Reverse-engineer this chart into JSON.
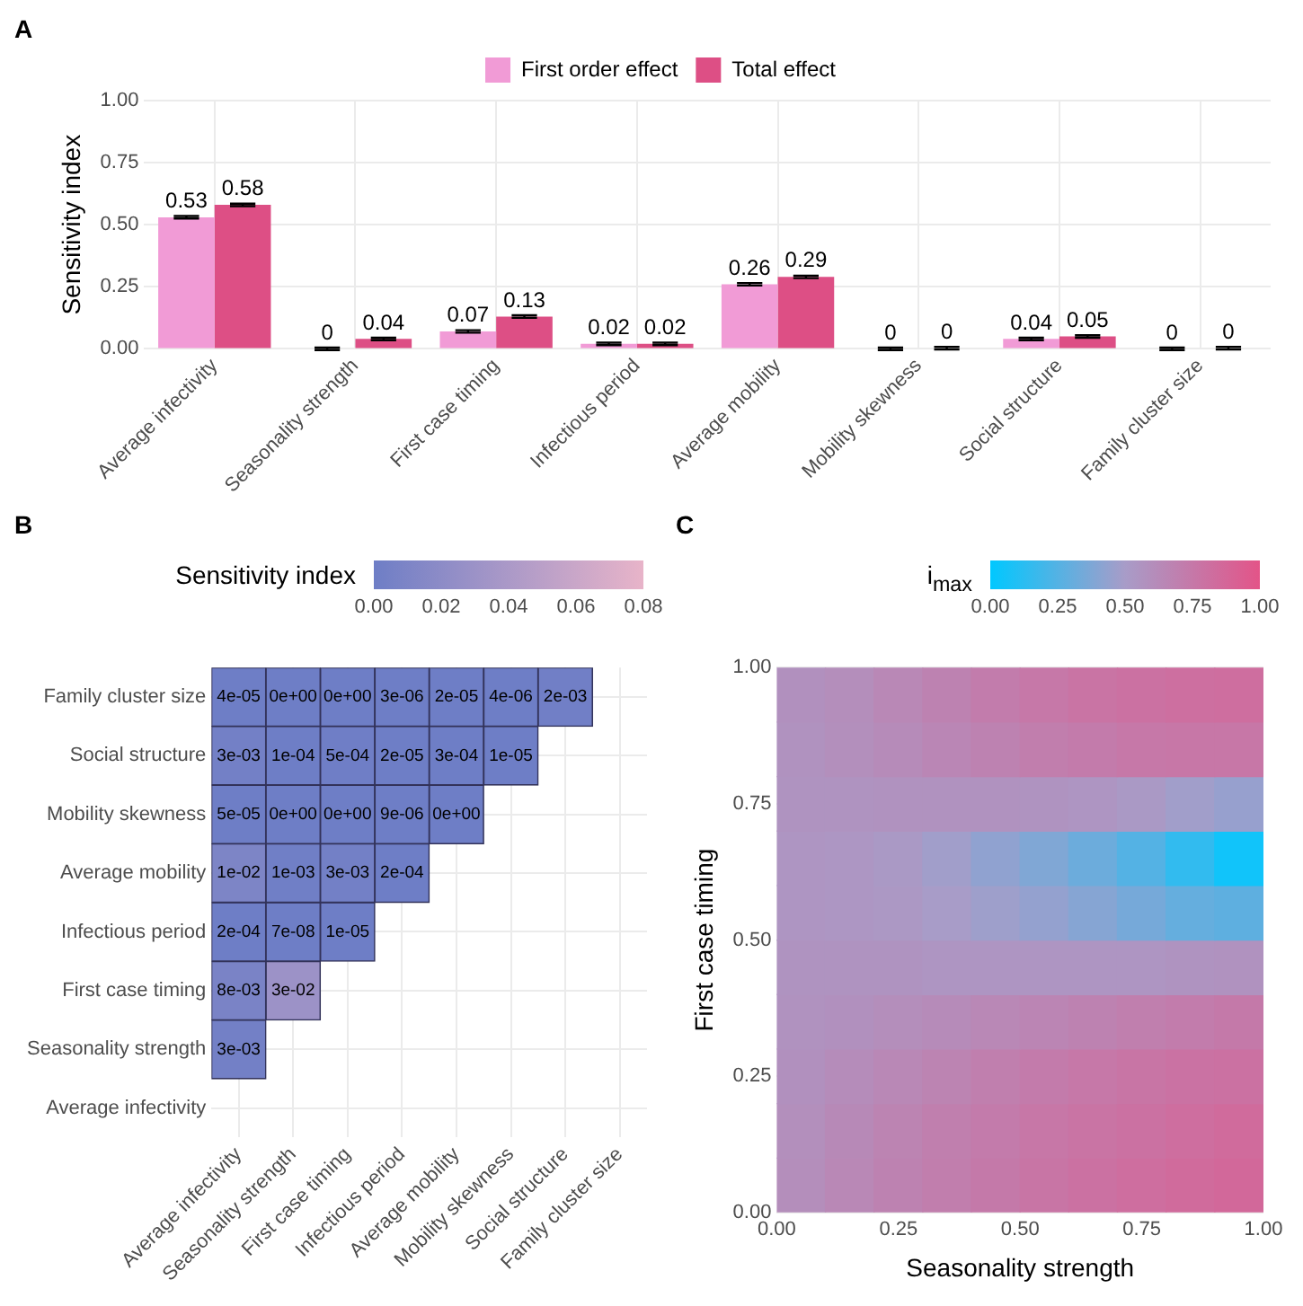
{
  "chart_data": [
    {
      "type": "bar",
      "annotations": [
        "A"
      ],
      "ylabel": "Sensitivity index",
      "categories": [
        "Average infectivity",
        "Seasonality strength",
        "First case timing",
        "Infectious period",
        "Average mobility",
        "Mobility skewness",
        "Social structure",
        "Family cluster size"
      ],
      "series": [
        {
          "name": "First order effect",
          "color": "#f19bd6",
          "values": [
            0.53,
            0,
            0.07,
            0.02,
            0.26,
            0,
            0.04,
            0
          ],
          "errors": [
            0.005,
            0.005,
            0.005,
            0.005,
            0.005,
            0.005,
            0.005,
            0.005
          ],
          "value_labels": [
            "0.53",
            "0",
            "0.07",
            "0.02",
            "0.26",
            "0",
            "0.04",
            "0"
          ]
        },
        {
          "name": "Total effect",
          "color": "#dd4f85",
          "values": [
            0.58,
            0.04,
            0.13,
            0.02,
            0.29,
            0.003,
            0.05,
            0.003
          ],
          "errors": [
            0.005,
            0.005,
            0.005,
            0.005,
            0.005,
            0.005,
            0.005,
            0.005
          ],
          "value_labels": [
            "0.58",
            "0.04",
            "0.13",
            "0.02",
            "0.29",
            "0",
            "0.05",
            "0"
          ]
        }
      ],
      "ylim": [
        0,
        1
      ],
      "yticks": [
        {
          "value": 0,
          "label": "0.00"
        },
        {
          "value": 0.25,
          "label": "0.25"
        },
        {
          "value": 0.5,
          "label": "0.50"
        },
        {
          "value": 0.75,
          "label": "0.75"
        },
        {
          "value": 1,
          "label": "1.00"
        }
      ],
      "grid": true,
      "legend": "top"
    },
    {
      "type": "heatmap",
      "annotations": [
        "B"
      ],
      "clabel": "Sensitivity index",
      "colors": [
        "#6e7ec6",
        "#e8b4c9"
      ],
      "clim": [
        0,
        0.08
      ],
      "cticks": [
        {
          "value": 0,
          "label": "0.00"
        },
        {
          "value": 0.02,
          "label": "0.02"
        },
        {
          "value": 0.04,
          "label": "0.04"
        },
        {
          "value": 0.06,
          "label": "0.06"
        },
        {
          "value": 0.08,
          "label": "0.08"
        }
      ],
      "categories": [
        "Average infectivity",
        "Seasonality strength",
        "First case timing",
        "Infectious period",
        "Average mobility",
        "Mobility skewness",
        "Social structure",
        "Family cluster size"
      ],
      "y_categories": [
        "Family cluster size",
        "Social structure",
        "Mobility skewness",
        "Average mobility",
        "Infectious period",
        "First case timing",
        "Seasonality strength",
        "Average infectivity"
      ],
      "cells": [
        [
          4e-05,
          0,
          0,
          3e-06,
          2e-05,
          4e-06,
          0.002,
          null
        ],
        [
          0.003,
          0.0001,
          0.0005,
          2e-05,
          0.0003,
          1e-05,
          null,
          null
        ],
        [
          5e-05,
          0,
          0,
          9e-06,
          0,
          null,
          null,
          null
        ],
        [
          0.01,
          0.001,
          0.003,
          0.0002,
          null,
          null,
          null,
          null
        ],
        [
          0.0002,
          7e-08,
          1e-05,
          null,
          null,
          null,
          null,
          null
        ],
        [
          0.008,
          0.03,
          null,
          null,
          null,
          null,
          null,
          null
        ],
        [
          0.003,
          null,
          null,
          null,
          null,
          null,
          null,
          null
        ],
        [
          null,
          null,
          null,
          null,
          null,
          null,
          null,
          null
        ]
      ],
      "cell_labels": [
        [
          "4e-05",
          "0e+00",
          "0e+00",
          "3e-06",
          "2e-05",
          "4e-06",
          "2e-03",
          null
        ],
        [
          "3e-03",
          "1e-04",
          "5e-04",
          "2e-05",
          "3e-04",
          "1e-05",
          null,
          null
        ],
        [
          "5e-05",
          "0e+00",
          "0e+00",
          "9e-06",
          "0e+00",
          null,
          null,
          null
        ],
        [
          "1e-02",
          "1e-03",
          "3e-03",
          "2e-04",
          null,
          null,
          null,
          null
        ],
        [
          "2e-04",
          "7e-08",
          "1e-05",
          null,
          null,
          null,
          null,
          null
        ],
        [
          "8e-03",
          "3e-02",
          null,
          null,
          null,
          null,
          null,
          null
        ],
        [
          "3e-03",
          null,
          null,
          null,
          null,
          null,
          null,
          null
        ],
        [
          null,
          null,
          null,
          null,
          null,
          null,
          null,
          null
        ]
      ],
      "grid": true
    },
    {
      "type": "heatmap",
      "annotations": [
        "C"
      ],
      "clabel": "i$_{max}$",
      "colors": [
        "#00c8ff",
        "#a89cc8",
        "#e35488"
      ],
      "clim": [
        0,
        1
      ],
      "cticks": [
        {
          "value": 0,
          "label": "0.00"
        },
        {
          "value": 0.25,
          "label": "0.25"
        },
        {
          "value": 0.5,
          "label": "0.50"
        },
        {
          "value": 0.75,
          "label": "0.75"
        },
        {
          "value": 1,
          "label": "1.00"
        }
      ],
      "xlabel": "Seasonality strength",
      "ylabel": "First case timing",
      "x": [
        0.05,
        0.15,
        0.25,
        0.35,
        0.45,
        0.55,
        0.65,
        0.75,
        0.85,
        0.95
      ],
      "y": [
        0.95,
        0.85,
        0.75,
        0.65,
        0.55,
        0.45,
        0.35,
        0.25,
        0.15,
        0.05
      ],
      "xlim": [
        0,
        1
      ],
      "xticks": [
        {
          "value": 0,
          "label": "0.00"
        },
        {
          "value": 0.25,
          "label": "0.25"
        },
        {
          "value": 0.5,
          "label": "0.50"
        },
        {
          "value": 0.75,
          "label": "0.75"
        },
        {
          "value": 1,
          "label": "1.00"
        }
      ],
      "ylim": [
        0,
        1
      ],
      "yticks": [
        {
          "value": 0,
          "label": "0.00"
        },
        {
          "value": 0.25,
          "label": "0.25"
        },
        {
          "value": 0.5,
          "label": "0.50"
        },
        {
          "value": 0.75,
          "label": "0.75"
        },
        {
          "value": 1,
          "label": "1.00"
        }
      ],
      "cells": [
        [
          0.58,
          0.6,
          0.64,
          0.68,
          0.72,
          0.75,
          0.78,
          0.8,
          0.81,
          0.82
        ],
        [
          0.57,
          0.59,
          0.62,
          0.65,
          0.68,
          0.71,
          0.73,
          0.75,
          0.76,
          0.76
        ],
        [
          0.56,
          0.56,
          0.57,
          0.57,
          0.57,
          0.56,
          0.55,
          0.52,
          0.48,
          0.45
        ],
        [
          0.55,
          0.54,
          0.52,
          0.48,
          0.43,
          0.38,
          0.32,
          0.25,
          0.15,
          0.05
        ],
        [
          0.55,
          0.54,
          0.53,
          0.5,
          0.47,
          0.44,
          0.4,
          0.35,
          0.3,
          0.28
        ],
        [
          0.56,
          0.56,
          0.56,
          0.55,
          0.55,
          0.55,
          0.55,
          0.55,
          0.56,
          0.57
        ],
        [
          0.57,
          0.58,
          0.6,
          0.62,
          0.64,
          0.66,
          0.68,
          0.7,
          0.72,
          0.74
        ],
        [
          0.58,
          0.61,
          0.64,
          0.67,
          0.7,
          0.73,
          0.75,
          0.77,
          0.79,
          0.8
        ],
        [
          0.59,
          0.63,
          0.67,
          0.7,
          0.73,
          0.76,
          0.78,
          0.8,
          0.82,
          0.84
        ],
        [
          0.6,
          0.64,
          0.68,
          0.71,
          0.74,
          0.77,
          0.8,
          0.82,
          0.84,
          0.86
        ]
      ],
      "grid": true
    }
  ]
}
